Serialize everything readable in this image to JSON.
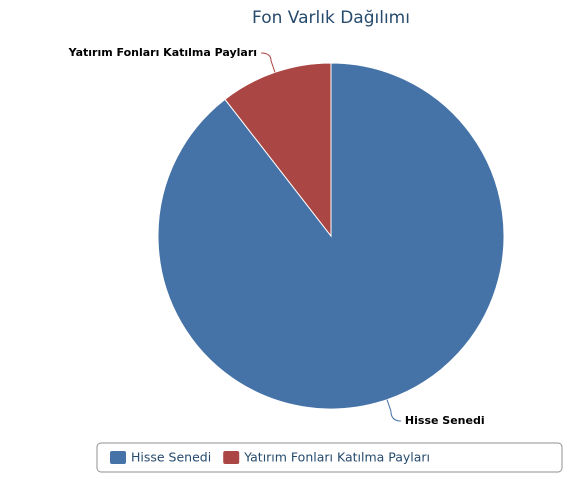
{
  "chart_data": {
    "type": "pie",
    "title": "Fon Varlık Dağılımı",
    "categories": [
      "Hisse Senedi",
      "Yatırım Fonları Katılma Payları"
    ],
    "values": [
      89.5,
      10.5
    ],
    "colors": [
      "#4572a7",
      "#aa4643"
    ],
    "legend": "bottom-right"
  }
}
